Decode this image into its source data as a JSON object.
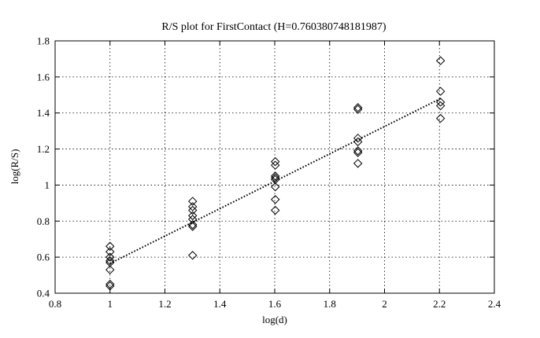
{
  "chart_data": {
    "type": "scatter",
    "title": "R/S plot for FirstContact (H=0.760380748181987)",
    "xlabel": "log(d)",
    "ylabel": "log(R/S)",
    "xlim": [
      0.8,
      2.4
    ],
    "ylim": [
      0.4,
      1.8
    ],
    "xticks": [
      0.8,
      1,
      1.2,
      1.4,
      1.6,
      1.8,
      2,
      2.2,
      2.4
    ],
    "xtick_labels": [
      "0.8",
      "1",
      "1.2",
      "1.4",
      "1.6",
      "1.8",
      "2",
      "2.2",
      "2.4"
    ],
    "yticks": [
      0.4,
      0.6,
      0.8,
      1,
      1.2,
      1.4,
      1.6,
      1.8
    ],
    "ytick_labels": [
      "0.4",
      "0.6",
      "0.8",
      "1",
      "1.2",
      "1.4",
      "1.6",
      "1.8"
    ],
    "grid": true,
    "marker": "diamond",
    "points": [
      {
        "x": 1.0,
        "y": 0.66
      },
      {
        "x": 1.0,
        "y": 0.63
      },
      {
        "x": 1.0,
        "y": 0.6
      },
      {
        "x": 1.0,
        "y": 0.58
      },
      {
        "x": 1.0,
        "y": 0.57
      },
      {
        "x": 1.0,
        "y": 0.53
      },
      {
        "x": 1.0,
        "y": 0.45
      },
      {
        "x": 1.0,
        "y": 0.44
      },
      {
        "x": 1.301,
        "y": 0.91
      },
      {
        "x": 1.301,
        "y": 0.88
      },
      {
        "x": 1.301,
        "y": 0.86
      },
      {
        "x": 1.301,
        "y": 0.83
      },
      {
        "x": 1.301,
        "y": 0.81
      },
      {
        "x": 1.301,
        "y": 0.78
      },
      {
        "x": 1.301,
        "y": 0.77
      },
      {
        "x": 1.301,
        "y": 0.61
      },
      {
        "x": 1.602,
        "y": 1.13
      },
      {
        "x": 1.602,
        "y": 1.11
      },
      {
        "x": 1.602,
        "y": 1.05
      },
      {
        "x": 1.602,
        "y": 1.04
      },
      {
        "x": 1.602,
        "y": 1.03
      },
      {
        "x": 1.602,
        "y": 0.99
      },
      {
        "x": 1.602,
        "y": 0.92
      },
      {
        "x": 1.602,
        "y": 0.86
      },
      {
        "x": 1.903,
        "y": 1.43
      },
      {
        "x": 1.903,
        "y": 1.42
      },
      {
        "x": 1.903,
        "y": 1.26
      },
      {
        "x": 1.903,
        "y": 1.24
      },
      {
        "x": 1.903,
        "y": 1.19
      },
      {
        "x": 1.903,
        "y": 1.18
      },
      {
        "x": 1.903,
        "y": 1.12
      },
      {
        "x": 2.204,
        "y": 1.69
      },
      {
        "x": 2.204,
        "y": 1.52
      },
      {
        "x": 2.204,
        "y": 1.46
      },
      {
        "x": 2.204,
        "y": 1.44
      },
      {
        "x": 2.204,
        "y": 1.37
      }
    ],
    "fit_line": {
      "x": [
        1.0,
        2.204
      ],
      "y": [
        0.565,
        1.48
      ],
      "style": "dotted"
    }
  }
}
